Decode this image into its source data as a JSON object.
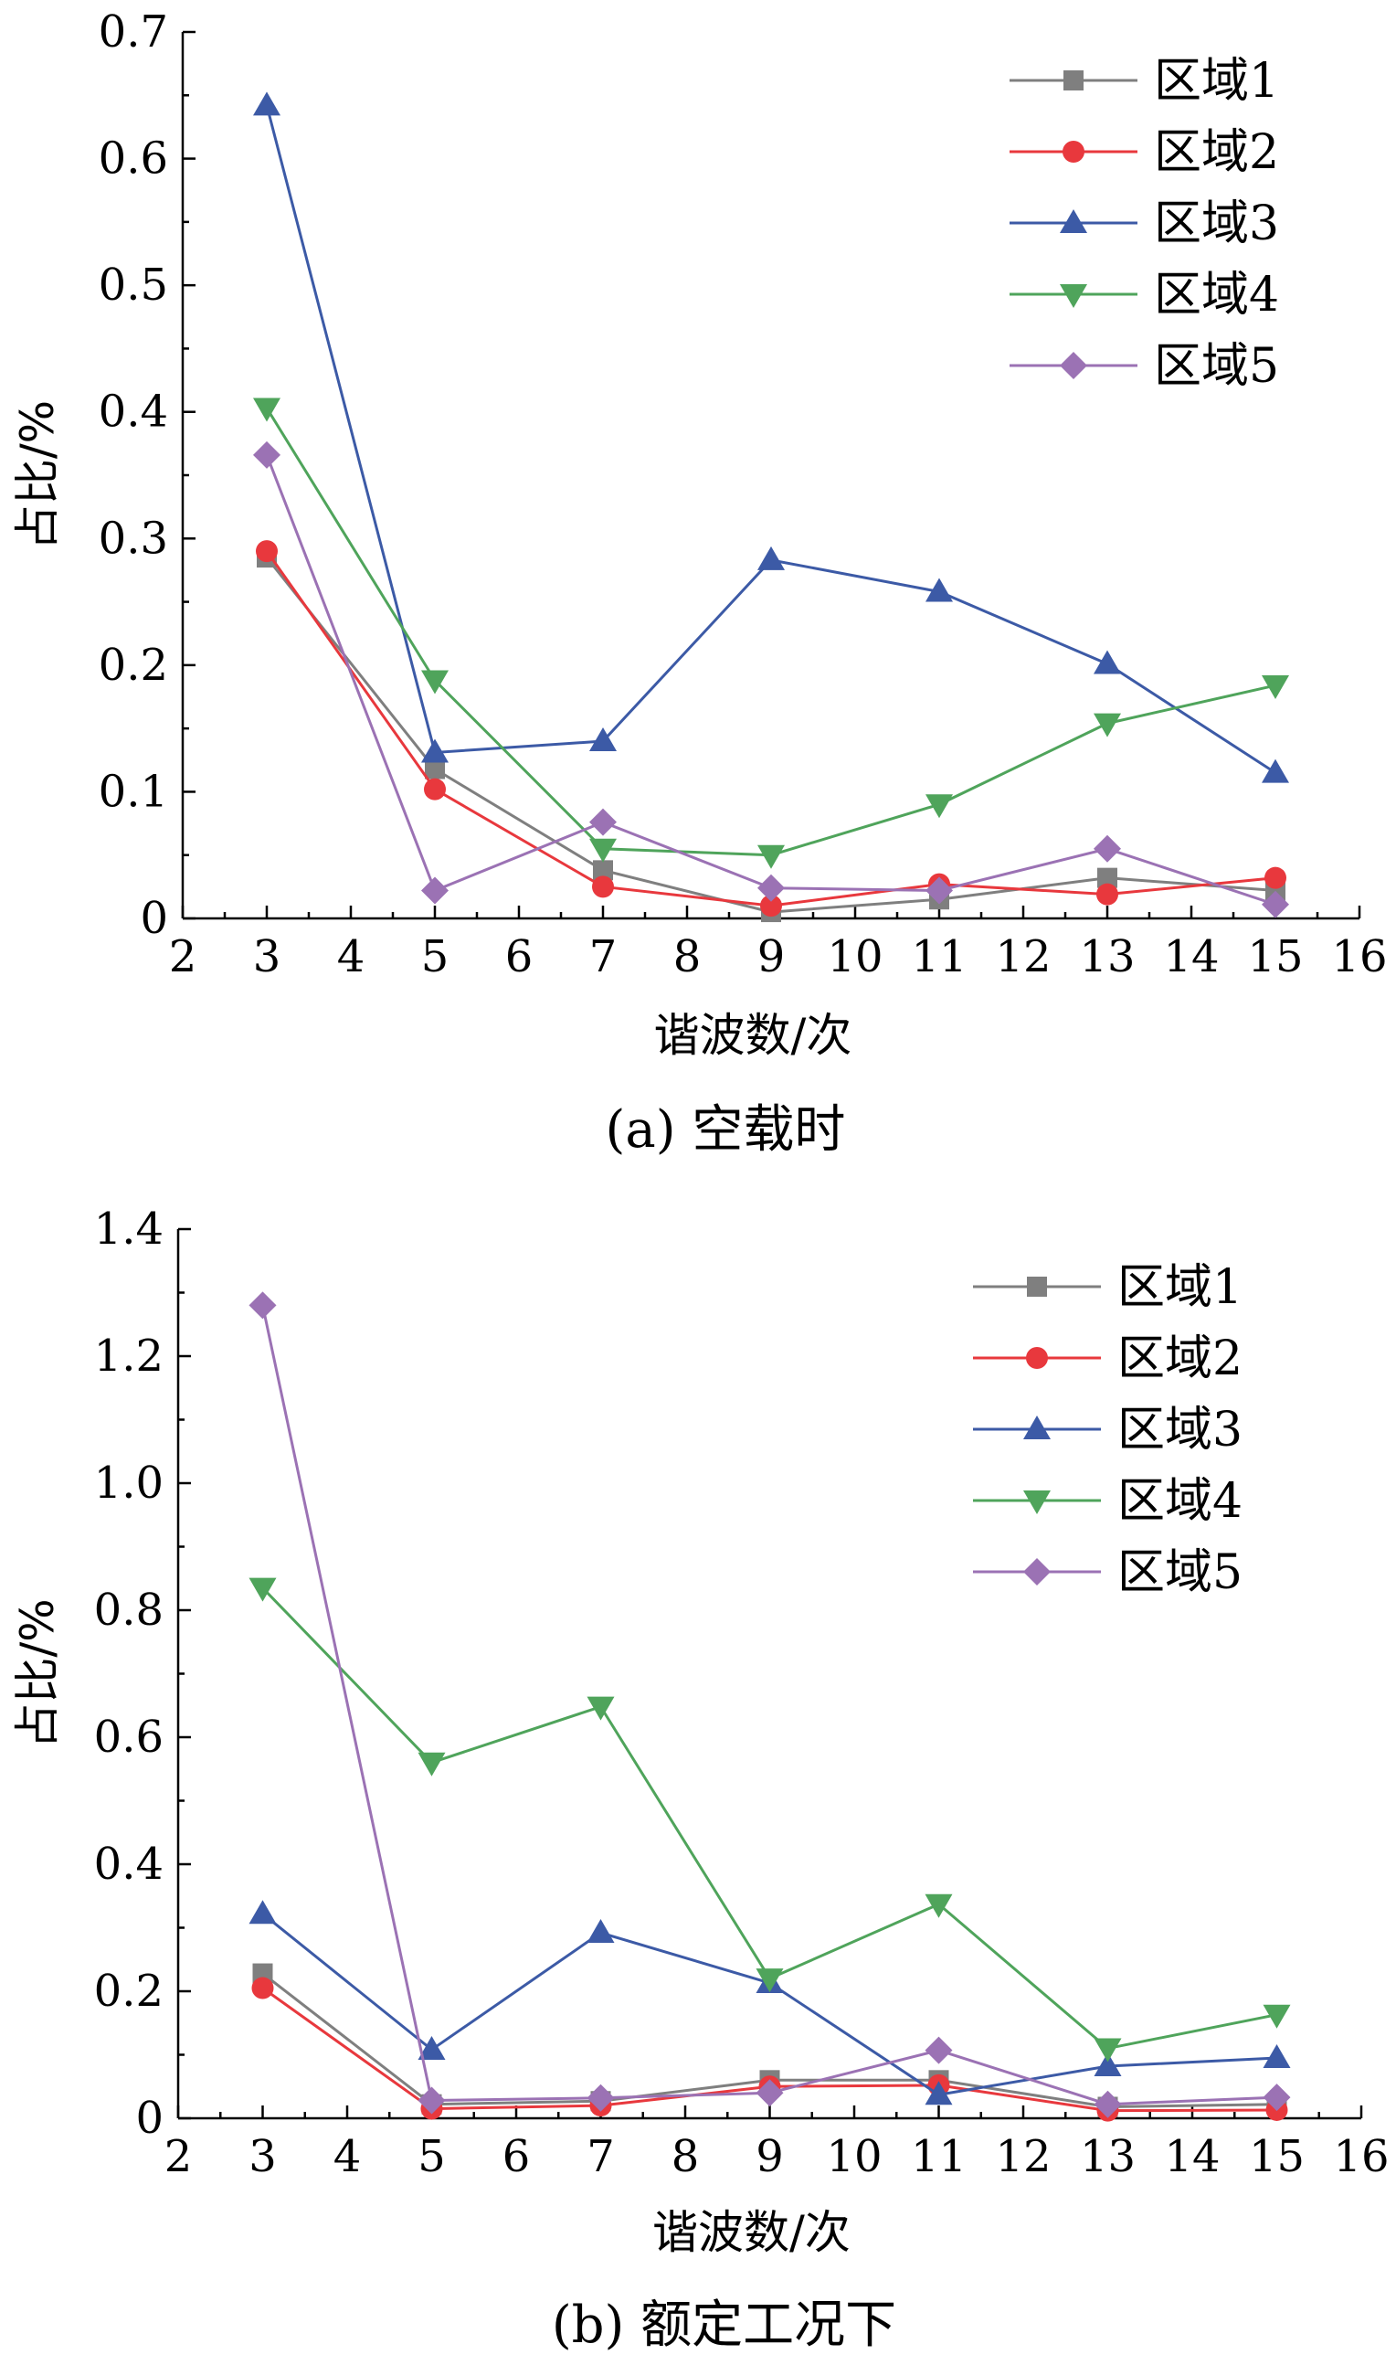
{
  "chart_data": [
    {
      "type": "line",
      "caption": "(a)  空载时",
      "xlabel": "谐波数/次",
      "ylabel": "占比/%",
      "xlim": [
        2,
        16
      ],
      "ylim": [
        0,
        0.7
      ],
      "xticks": [
        "2",
        "3",
        "4",
        "5",
        "6",
        "7",
        "8",
        "9",
        "10",
        "11",
        "12",
        "13",
        "14",
        "15",
        "16"
      ],
      "yticks": [
        "0",
        "0.1",
        "0.2",
        "0.3",
        "0.4",
        "0.5",
        "0.6",
        "0.7"
      ],
      "ytick_values": [
        0,
        0.1,
        0.2,
        0.3,
        0.4,
        0.5,
        0.6,
        0.7
      ],
      "legend_position": "top-right",
      "x": [
        3,
        5,
        7,
        9,
        11,
        13,
        15
      ],
      "series": [
        {
          "name": "区域1",
          "color": "#7f7f7f",
          "marker": "square",
          "values": [
            0.285,
            0.118,
            0.038,
            0.005,
            0.015,
            0.032,
            0.022
          ]
        },
        {
          "name": "区域2",
          "color": "#e8383d",
          "marker": "circle",
          "values": [
            0.29,
            0.102,
            0.025,
            0.01,
            0.027,
            0.019,
            0.032
          ]
        },
        {
          "name": "区域3",
          "color": "#3c5aa6",
          "marker": "triangle-up",
          "values": [
            0.642,
            0.131,
            0.14,
            0.283,
            0.258,
            0.201,
            0.115
          ]
        },
        {
          "name": "区域4",
          "color": "#4fa45b",
          "marker": "triangle-down",
          "values": [
            0.403,
            0.188,
            0.055,
            0.05,
            0.09,
            0.154,
            0.184
          ]
        },
        {
          "name": "区域5",
          "color": "#9b72b4",
          "marker": "diamond",
          "values": [
            0.366,
            0.022,
            0.076,
            0.024,
            0.022,
            0.055,
            0.011
          ]
        }
      ]
    },
    {
      "type": "line",
      "caption": "(b)  额定工况下",
      "xlabel": "谐波数/次",
      "ylabel": "占比/%",
      "xlim": [
        2,
        16
      ],
      "ylim": [
        0,
        1.4
      ],
      "xticks": [
        "2",
        "3",
        "4",
        "5",
        "6",
        "7",
        "8",
        "9",
        "10",
        "11",
        "12",
        "13",
        "14",
        "15",
        "16"
      ],
      "yticks": [
        "0",
        "0.2",
        "0.4",
        "0.6",
        "0.8",
        "1.0",
        "1.2",
        "1.4"
      ],
      "ytick_values": [
        0,
        0.2,
        0.4,
        0.6,
        0.8,
        1.0,
        1.2,
        1.4
      ],
      "legend_position": "top-right",
      "x": [
        3,
        5,
        7,
        9,
        11,
        13,
        15
      ],
      "series": [
        {
          "name": "区域1",
          "color": "#7f7f7f",
          "marker": "square",
          "values": [
            0.228,
            0.022,
            0.027,
            0.06,
            0.06,
            0.018,
            0.022
          ]
        },
        {
          "name": "区域2",
          "color": "#e8383d",
          "marker": "circle",
          "values": [
            0.205,
            0.015,
            0.02,
            0.05,
            0.052,
            0.012,
            0.013
          ]
        },
        {
          "name": "区域3",
          "color": "#3c5aa6",
          "marker": "triangle-up",
          "values": [
            0.322,
            0.108,
            0.292,
            0.213,
            0.037,
            0.082,
            0.095
          ]
        },
        {
          "name": "区域4",
          "color": "#4fa45b",
          "marker": "triangle-down",
          "values": [
            0.835,
            0.56,
            0.648,
            0.22,
            0.337,
            0.11,
            0.163
          ]
        },
        {
          "name": "区域5",
          "color": "#9b72b4",
          "marker": "diamond",
          "values": [
            1.28,
            0.028,
            0.032,
            0.04,
            0.107,
            0.022,
            0.033
          ]
        }
      ]
    }
  ]
}
